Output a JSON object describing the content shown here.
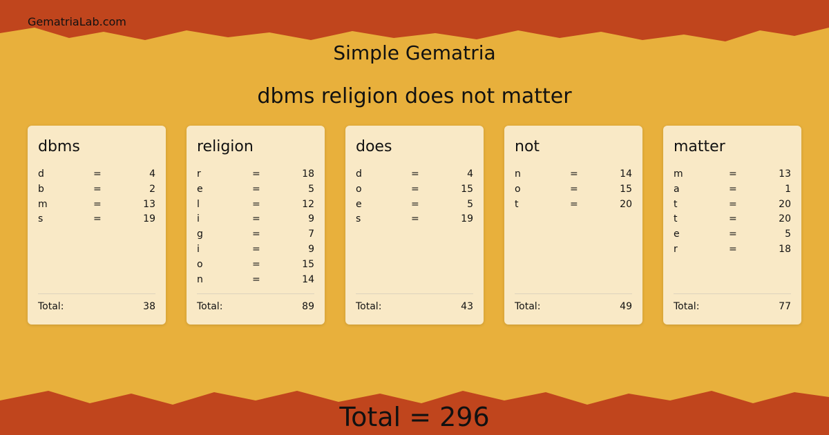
{
  "site": "GematriaLab.com",
  "title": "Simple Gematria",
  "phrase": "dbms religion does not matter",
  "equals": "=",
  "total_label": "Total:",
  "words": [
    {
      "word": "dbms",
      "letters": [
        {
          "letter": "d",
          "value": 4
        },
        {
          "letter": "b",
          "value": 2
        },
        {
          "letter": "m",
          "value": 13
        },
        {
          "letter": "s",
          "value": 19
        }
      ],
      "total": 38
    },
    {
      "word": "religion",
      "letters": [
        {
          "letter": "r",
          "value": 18
        },
        {
          "letter": "e",
          "value": 5
        },
        {
          "letter": "l",
          "value": 12
        },
        {
          "letter": "i",
          "value": 9
        },
        {
          "letter": "g",
          "value": 7
        },
        {
          "letter": "i",
          "value": 9
        },
        {
          "letter": "o",
          "value": 15
        },
        {
          "letter": "n",
          "value": 14
        }
      ],
      "total": 89
    },
    {
      "word": "does",
      "letters": [
        {
          "letter": "d",
          "value": 4
        },
        {
          "letter": "o",
          "value": 15
        },
        {
          "letter": "e",
          "value": 5
        },
        {
          "letter": "s",
          "value": 19
        }
      ],
      "total": 43
    },
    {
      "word": "not",
      "letters": [
        {
          "letter": "n",
          "value": 14
        },
        {
          "letter": "o",
          "value": 15
        },
        {
          "letter": "t",
          "value": 20
        }
      ],
      "total": 49
    },
    {
      "word": "matter",
      "letters": [
        {
          "letter": "m",
          "value": 13
        },
        {
          "letter": "a",
          "value": 1
        },
        {
          "letter": "t",
          "value": 20
        },
        {
          "letter": "t",
          "value": 20
        },
        {
          "letter": "e",
          "value": 5
        },
        {
          "letter": "r",
          "value": 18
        }
      ],
      "total": 77
    }
  ],
  "grand_total": {
    "label": "Total",
    "sign": "=",
    "value": 296
  }
}
